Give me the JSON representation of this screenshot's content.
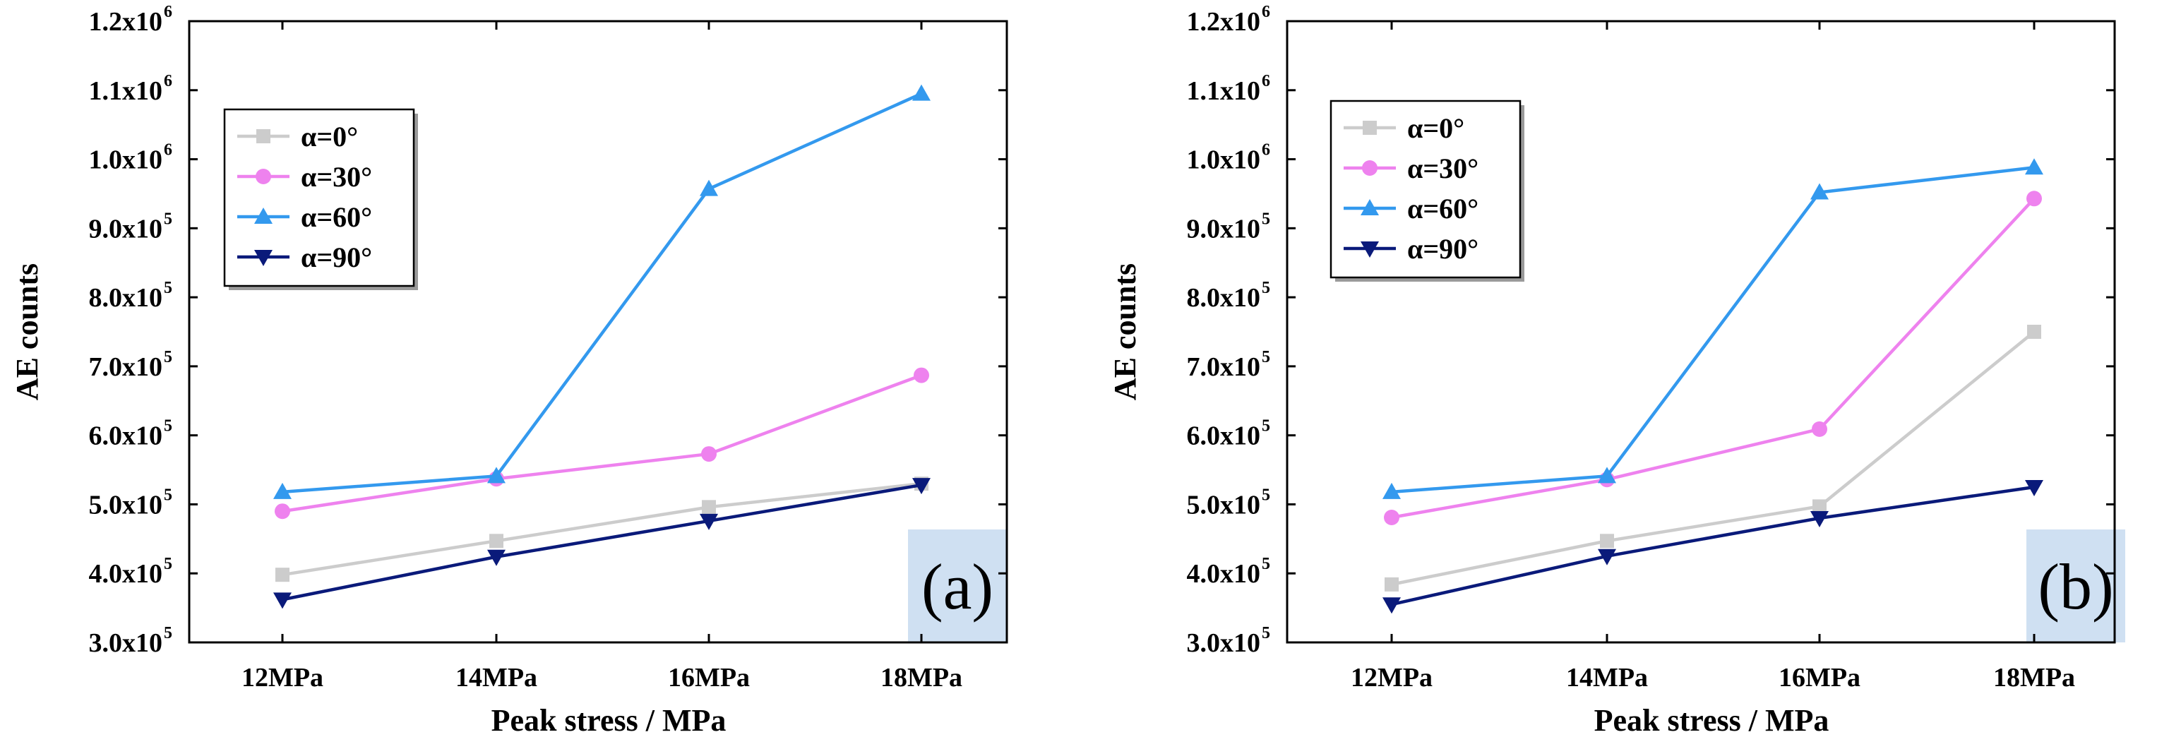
{
  "chart_data": [
    {
      "type": "line",
      "panel_label": "(a)",
      "title": "",
      "xlabel": "Peak stress / MPa",
      "ylabel": "AE counts",
      "categories": [
        "12MPa",
        "14MPa",
        "16MPa",
        "18MPa"
      ],
      "ylim": [
        300000,
        1200000
      ],
      "y_ticks": [
        {
          "value": 300000,
          "mantissa": "3.0x10",
          "exp": "5"
        },
        {
          "value": 400000,
          "mantissa": "4.0x10",
          "exp": "5"
        },
        {
          "value": 500000,
          "mantissa": "5.0x10",
          "exp": "5"
        },
        {
          "value": 600000,
          "mantissa": "6.0x10",
          "exp": "5"
        },
        {
          "value": 700000,
          "mantissa": "7.0x10",
          "exp": "5"
        },
        {
          "value": 800000,
          "mantissa": "8.0x10",
          "exp": "5"
        },
        {
          "value": 900000,
          "mantissa": "9.0x10",
          "exp": "5"
        },
        {
          "value": 1000000,
          "mantissa": "1.0x10",
          "exp": "6"
        },
        {
          "value": 1100000,
          "mantissa": "1.1x10",
          "exp": "6"
        },
        {
          "value": 1200000,
          "mantissa": "1.2x10",
          "exp": "6"
        }
      ],
      "legend_position": "top-left",
      "series": [
        {
          "name": "α=0°",
          "color": "#cccccc",
          "marker": "square",
          "values": [
            398000,
            447000,
            496000,
            530000
          ]
        },
        {
          "name": "α=30°",
          "color": "#ee82ee",
          "marker": "circle",
          "values": [
            490000,
            537000,
            573000,
            687000
          ]
        },
        {
          "name": "α=60°",
          "color": "#3399ee",
          "marker": "triangle-up",
          "values": [
            518000,
            541000,
            957000,
            1095000
          ]
        },
        {
          "name": "α=90°",
          "color": "#0a1a7a",
          "marker": "triangle-down",
          "values": [
            362000,
            424000,
            476000,
            528000
          ]
        }
      ]
    },
    {
      "type": "line",
      "panel_label": "(b)",
      "title": "",
      "xlabel": "Peak stress / MPa",
      "ylabel": "AE counts",
      "categories": [
        "12MPa",
        "14MPa",
        "16MPa",
        "18MPa"
      ],
      "ylim": [
        300000,
        1200000
      ],
      "y_ticks": [
        {
          "value": 300000,
          "mantissa": "3.0x10",
          "exp": "5"
        },
        {
          "value": 400000,
          "mantissa": "4.0x10",
          "exp": "5"
        },
        {
          "value": 500000,
          "mantissa": "5.0x10",
          "exp": "5"
        },
        {
          "value": 600000,
          "mantissa": "6.0x10",
          "exp": "5"
        },
        {
          "value": 700000,
          "mantissa": "7.0x10",
          "exp": "5"
        },
        {
          "value": 800000,
          "mantissa": "8.0x10",
          "exp": "5"
        },
        {
          "value": 900000,
          "mantissa": "9.0x10",
          "exp": "5"
        },
        {
          "value": 1000000,
          "mantissa": "1.0x10",
          "exp": "6"
        },
        {
          "value": 1100000,
          "mantissa": "1.1x10",
          "exp": "6"
        },
        {
          "value": 1200000,
          "mantissa": "1.2x10",
          "exp": "6"
        }
      ],
      "legend_position": "top-left",
      "series": [
        {
          "name": "α=0°",
          "color": "#cccccc",
          "marker": "square",
          "values": [
            384000,
            447000,
            497000,
            750000
          ]
        },
        {
          "name": "α=30°",
          "color": "#ee82ee",
          "marker": "circle",
          "values": [
            481000,
            536000,
            609000,
            943000
          ]
        },
        {
          "name": "α=60°",
          "color": "#3399ee",
          "marker": "triangle-up",
          "values": [
            518000,
            541000,
            952000,
            988000
          ]
        },
        {
          "name": "α=90°",
          "color": "#0a1a7a",
          "marker": "triangle-down",
          "values": [
            355000,
            425000,
            480000,
            525000
          ]
        }
      ]
    }
  ]
}
